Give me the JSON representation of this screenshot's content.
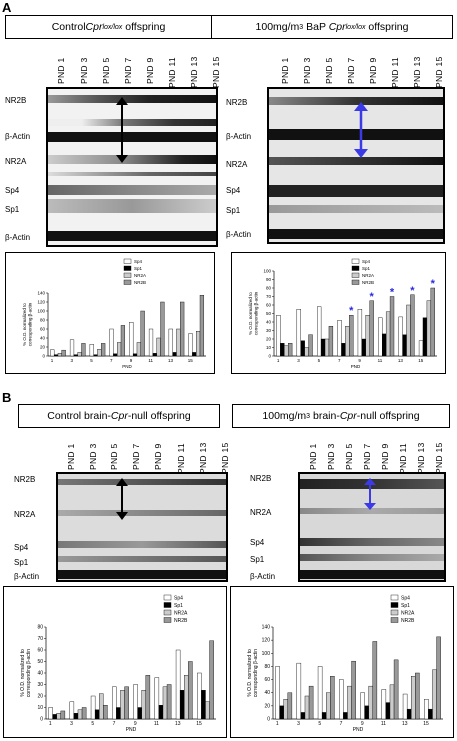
{
  "panels": [
    {
      "letter": "A",
      "header_left": {
        "prefix": "Control ",
        "gene": "Cpr",
        "sup": "lox/lox",
        "suffix": " offspring"
      },
      "header_right": {
        "prefix": "100mg/m",
        "sup1": "3",
        "mid": " BaP ",
        "gene": "Cpr",
        "sup": "lox/lox",
        "suffix": " offspring"
      },
      "blot_left_labels": [
        "NR2B",
        "β-Actin",
        "NR2A",
        "Sp4",
        "Sp1",
        "β-Actin"
      ],
      "blot_right_labels": [
        "NR2B",
        "β-Actin",
        "NR2A",
        "Sp4",
        "Sp1",
        "β-Actin"
      ]
    },
    {
      "letter": "B",
      "header_left": {
        "prefix": "Control brain-",
        "gene": "Cpr",
        "suffix": "-null offspring"
      },
      "header_right": {
        "prefix": "100mg/m",
        "sup1": "3",
        "mid": " brain-",
        "gene": "Cpr",
        "suffix": "-null offspring"
      },
      "blot_left_labels": [
        "NR2B",
        "NR2A",
        "Sp4",
        "Sp1",
        "β-Actin"
      ],
      "blot_right_labels": [
        "NR2B",
        "NR2A",
        "Sp4",
        "Sp1",
        "β-Actin"
      ]
    }
  ],
  "pnd_labels": [
    "PND 1",
    "PND 3",
    "PND 5",
    "PND 7",
    "PND 9",
    "PND 11",
    "PND 13",
    "PND 15"
  ],
  "chart_data": [
    {
      "type": "bar",
      "panel": "A-left",
      "categories": [
        "1",
        "3",
        "5",
        "7",
        "9",
        "11",
        "13",
        "15"
      ],
      "ylabel": "% O.D. normalized to corresponding β-actin",
      "xlabel": "PND",
      "ylim": [
        0,
        140
      ],
      "yticks": [
        0,
        20,
        40,
        60,
        80,
        100,
        120,
        140
      ],
      "legend": [
        "Sp4",
        "Sp1",
        "NR2A",
        "NR2B"
      ],
      "series": [
        {
          "name": "Sp4",
          "values": [
            14,
            36,
            26,
            60,
            75,
            60,
            60,
            50
          ]
        },
        {
          "name": "Sp1",
          "values": [
            3,
            3,
            3,
            5,
            5,
            6,
            8,
            8
          ]
        },
        {
          "name": "NR2A",
          "values": [
            6,
            8,
            15,
            30,
            30,
            40,
            60,
            55
          ]
        },
        {
          "name": "NR2B",
          "values": [
            13,
            28,
            28,
            68,
            100,
            120,
            120,
            135
          ]
        }
      ]
    },
    {
      "type": "bar",
      "panel": "A-right",
      "categories": [
        "1",
        "3",
        "5",
        "7",
        "9",
        "11",
        "13",
        "15"
      ],
      "ylabel": "% O.D. normalized to corresponding β-actin",
      "xlabel": "PND",
      "ylim": [
        0,
        100
      ],
      "yticks": [
        0,
        10,
        20,
        30,
        40,
        50,
        60,
        70,
        80,
        90,
        100
      ],
      "legend": [
        "Sp4",
        "Sp1",
        "NR2A",
        "NR2B"
      ],
      "annotations": [
        "*",
        "*",
        "*",
        "*",
        "*"
      ],
      "series": [
        {
          "name": "Sp4",
          "values": [
            48,
            55,
            58,
            42,
            55,
            45,
            46,
            18
          ]
        },
        {
          "name": "Sp1",
          "values": [
            15,
            18,
            20,
            15,
            20,
            26,
            25,
            45
          ]
        },
        {
          "name": "NR2A",
          "values": [
            12,
            10,
            20,
            35,
            48,
            52,
            60,
            65
          ]
        },
        {
          "name": "NR2B",
          "values": [
            15,
            25,
            35,
            48,
            65,
            70,
            72,
            80
          ]
        }
      ]
    },
    {
      "type": "bar",
      "panel": "B-left",
      "categories": [
        "1",
        "3",
        "5",
        "7",
        "9",
        "11",
        "13",
        "15"
      ],
      "ylabel": "% O.D. normalized to corresponding β-actin",
      "xlabel": "PND",
      "ylim": [
        0,
        80
      ],
      "yticks": [
        0,
        10,
        20,
        30,
        40,
        50,
        60,
        70,
        80
      ],
      "legend": [
        "Sp4",
        "Sp1",
        "NR2A",
        "NR2B"
      ],
      "series": [
        {
          "name": "Sp4",
          "values": [
            10,
            15,
            20,
            28,
            30,
            36,
            60,
            40
          ]
        },
        {
          "name": "Sp1",
          "values": [
            4,
            5,
            8,
            10,
            10,
            12,
            25,
            25
          ]
        },
        {
          "name": "NR2A",
          "values": [
            5,
            8,
            22,
            25,
            25,
            28,
            38,
            15
          ]
        },
        {
          "name": "NR2B",
          "values": [
            7,
            10,
            12,
            28,
            38,
            30,
            50,
            68
          ]
        }
      ]
    },
    {
      "type": "bar",
      "panel": "B-right",
      "categories": [
        "1",
        "3",
        "5",
        "7",
        "9",
        "11",
        "13",
        "15"
      ],
      "ylabel": "% O.D. normalized to corresponding β-actin",
      "xlabel": "PND",
      "ylim": [
        0,
        140
      ],
      "yticks": [
        0,
        20,
        40,
        60,
        80,
        100,
        120,
        140
      ],
      "legend": [
        "Sp4",
        "Sp1",
        "NR2A",
        "NR2B"
      ],
      "series": [
        {
          "name": "Sp4",
          "values": [
            80,
            85,
            80,
            60,
            40,
            45,
            38,
            30
          ]
        },
        {
          "name": "Sp1",
          "values": [
            20,
            10,
            10,
            10,
            20,
            25,
            15,
            15
          ]
        },
        {
          "name": "NR2A",
          "values": [
            30,
            35,
            40,
            50,
            50,
            52,
            65,
            75
          ]
        },
        {
          "name": "NR2B",
          "values": [
            40,
            50,
            65,
            88,
            118,
            90,
            70,
            125
          ]
        }
      ]
    }
  ],
  "colors": {
    "Sp4": "#ffffff",
    "Sp1": "#000000",
    "NR2A": "#cccccc",
    "NR2B": "#999999",
    "star": "#2a2ae0",
    "arrow_blue": "#3a3ae6"
  }
}
